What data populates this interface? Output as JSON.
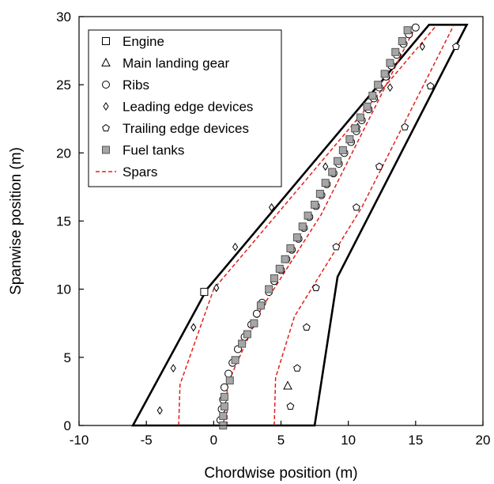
{
  "chart_data": {
    "type": "scatter",
    "xlabel": "Chordwise position (m)",
    "ylabel": "Spanwise position (m)",
    "xlim": [
      -10,
      20
    ],
    "ylim": [
      0,
      30
    ],
    "xticks": [
      "-10",
      "-5",
      "0",
      "5",
      "10",
      "15",
      "20"
    ],
    "yticks": [
      "0",
      "5",
      "10",
      "15",
      "20",
      "25",
      "30"
    ],
    "grid": false,
    "legend_position": "top-left",
    "wing_outline": [
      [
        -6.0,
        0.0
      ],
      [
        -0.5,
        10.0
      ],
      [
        16.0,
        29.4
      ],
      [
        18.8,
        29.4
      ],
      [
        9.2,
        10.9
      ],
      [
        7.5,
        0.0
      ]
    ],
    "series": [
      {
        "name": "Engine",
        "marker": "square-open",
        "points": [
          [
            -0.7,
            9.8
          ]
        ]
      },
      {
        "name": "Main landing gear",
        "marker": "triangle-open",
        "points": [
          [
            5.5,
            2.9
          ]
        ]
      },
      {
        "name": "Ribs",
        "marker": "circle-open",
        "points": [
          [
            0.5,
            0.4
          ],
          [
            0.6,
            1.2
          ],
          [
            0.7,
            1.9
          ],
          [
            0.8,
            2.8
          ],
          [
            1.1,
            3.8
          ],
          [
            1.4,
            4.6
          ],
          [
            1.8,
            5.6
          ],
          [
            2.3,
            6.5
          ],
          [
            2.8,
            7.4
          ],
          [
            3.2,
            8.2
          ],
          [
            3.6,
            9.0
          ],
          [
            4.1,
            9.8
          ],
          [
            4.5,
            10.6
          ],
          [
            5.0,
            11.4
          ],
          [
            5.4,
            12.2
          ],
          [
            5.8,
            12.9
          ],
          [
            6.3,
            13.7
          ],
          [
            6.7,
            14.5
          ],
          [
            7.1,
            15.3
          ],
          [
            7.6,
            16.1
          ],
          [
            8.0,
            16.9
          ],
          [
            8.4,
            17.7
          ],
          [
            8.9,
            18.5
          ],
          [
            9.3,
            19.2
          ],
          [
            9.7,
            20.0
          ],
          [
            10.2,
            20.8
          ],
          [
            10.6,
            21.6
          ],
          [
            11.0,
            22.4
          ],
          [
            11.5,
            23.2
          ],
          [
            11.9,
            24.0
          ],
          [
            12.3,
            24.8
          ],
          [
            12.8,
            25.6
          ],
          [
            13.2,
            26.4
          ],
          [
            13.6,
            27.2
          ],
          [
            14.1,
            28.0
          ],
          [
            14.5,
            28.7
          ],
          [
            15.0,
            29.2
          ]
        ]
      },
      {
        "name": "Leading edge devices",
        "marker": "diamond-open",
        "points": [
          [
            -4.0,
            1.1
          ],
          [
            -3.0,
            4.2
          ],
          [
            -1.5,
            7.2
          ],
          [
            0.2,
            10.1
          ],
          [
            1.6,
            13.1
          ],
          [
            4.3,
            16.0
          ],
          [
            8.3,
            19.0
          ],
          [
            10.7,
            21.9
          ],
          [
            13.1,
            24.8
          ],
          [
            15.5,
            27.8
          ]
        ]
      },
      {
        "name": "Trailing edge devices",
        "marker": "pentagon-open",
        "points": [
          [
            5.7,
            1.4
          ],
          [
            6.2,
            4.2
          ],
          [
            6.9,
            7.2
          ],
          [
            7.6,
            10.1
          ],
          [
            9.1,
            13.1
          ],
          [
            10.6,
            16.0
          ],
          [
            12.3,
            19.0
          ],
          [
            14.2,
            21.9
          ],
          [
            16.1,
            24.9
          ],
          [
            18.0,
            27.8
          ]
        ]
      },
      {
        "name": "Fuel tanks",
        "marker": "square-filled",
        "points": [
          [
            0.7,
            0.0
          ],
          [
            0.7,
            0.7
          ],
          [
            0.8,
            1.4
          ],
          [
            0.8,
            2.1
          ],
          [
            1.2,
            3.3
          ],
          [
            1.6,
            4.8
          ],
          [
            2.1,
            6.0
          ],
          [
            2.5,
            6.7
          ],
          [
            3.0,
            7.5
          ],
          [
            3.5,
            8.8
          ],
          [
            4.1,
            10.0
          ],
          [
            4.5,
            10.8
          ],
          [
            4.9,
            11.5
          ],
          [
            5.3,
            12.2
          ],
          [
            5.7,
            13.0
          ],
          [
            6.2,
            13.8
          ],
          [
            6.6,
            14.6
          ],
          [
            7.0,
            15.4
          ],
          [
            7.5,
            16.2
          ],
          [
            7.9,
            17.0
          ],
          [
            8.3,
            17.8
          ],
          [
            8.8,
            18.6
          ],
          [
            9.2,
            19.4
          ],
          [
            9.6,
            20.2
          ],
          [
            10.1,
            21.0
          ],
          [
            10.5,
            21.8
          ],
          [
            10.9,
            22.6
          ],
          [
            11.4,
            23.4
          ],
          [
            11.8,
            24.2
          ],
          [
            12.2,
            25.0
          ],
          [
            12.7,
            25.8
          ],
          [
            13.1,
            26.6
          ],
          [
            13.5,
            27.4
          ],
          [
            14.0,
            28.2
          ],
          [
            14.4,
            29.0
          ]
        ]
      },
      {
        "name": "Spars",
        "marker": "dashed-line",
        "lines": [
          [
            [
              -2.6,
              0.0
            ],
            [
              -2.5,
              3.0
            ],
            [
              0.0,
              10.0
            ],
            [
              16.5,
              29.3
            ]
          ],
          [
            [
              1.0,
              0.0
            ],
            [
              1.0,
              3.0
            ],
            [
              3.5,
              8.5
            ],
            [
              8.0,
              15.5
            ],
            [
              15.0,
              29.3
            ]
          ],
          [
            [
              4.5,
              0.0
            ],
            [
              4.6,
              3.5
            ],
            [
              6.0,
              8.0
            ],
            [
              11.0,
              16.0
            ],
            [
              17.8,
              29.3
            ]
          ]
        ]
      }
    ],
    "colors": {
      "outline": "#000000",
      "spars": "#e0201b",
      "fuel_fill": "#a6a6a6",
      "marker_stroke": "#000000"
    }
  }
}
